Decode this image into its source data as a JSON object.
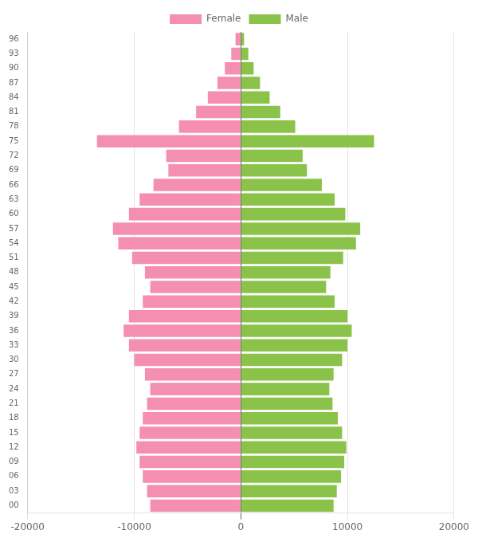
{
  "chart_data": {
    "type": "bar",
    "orientation": "horizontal",
    "categories": [
      "00",
      "03",
      "06",
      "09",
      "12",
      "15",
      "18",
      "21",
      "24",
      "27",
      "30",
      "33",
      "36",
      "39",
      "42",
      "45",
      "48",
      "51",
      "54",
      "57",
      "60",
      "63",
      "66",
      "69",
      "72",
      "75",
      "78",
      "81",
      "84",
      "87",
      "90",
      "93",
      "96"
    ],
    "series": [
      {
        "name": "Female",
        "color": "#f48fb1",
        "values": [
          -8500,
          -8800,
          -9200,
          -9500,
          -9800,
          -9500,
          -9200,
          -8800,
          -8500,
          -9000,
          -10000,
          -10500,
          -11000,
          -10500,
          -9200,
          -8500,
          -9000,
          -10200,
          -11500,
          -12000,
          -10500,
          -9500,
          -8200,
          -6800,
          -7000,
          -13500,
          -5800,
          -4200,
          -3100,
          -2200,
          -1500,
          -900,
          -500
        ]
      },
      {
        "name": "Male",
        "color": "#8bc34a",
        "values": [
          8700,
          9000,
          9400,
          9700,
          9900,
          9500,
          9100,
          8600,
          8300,
          8700,
          9500,
          10000,
          10400,
          10000,
          8800,
          8000,
          8400,
          9600,
          10800,
          11200,
          9800,
          8800,
          7600,
          6200,
          5800,
          12500,
          5100,
          3700,
          2700,
          1800,
          1200,
          700,
          300
        ]
      }
    ],
    "xlim": [
      -20000,
      20000
    ],
    "xticks": [
      -20000,
      -10000,
      0,
      10000,
      20000
    ],
    "grid": true,
    "legend": "upper center"
  }
}
